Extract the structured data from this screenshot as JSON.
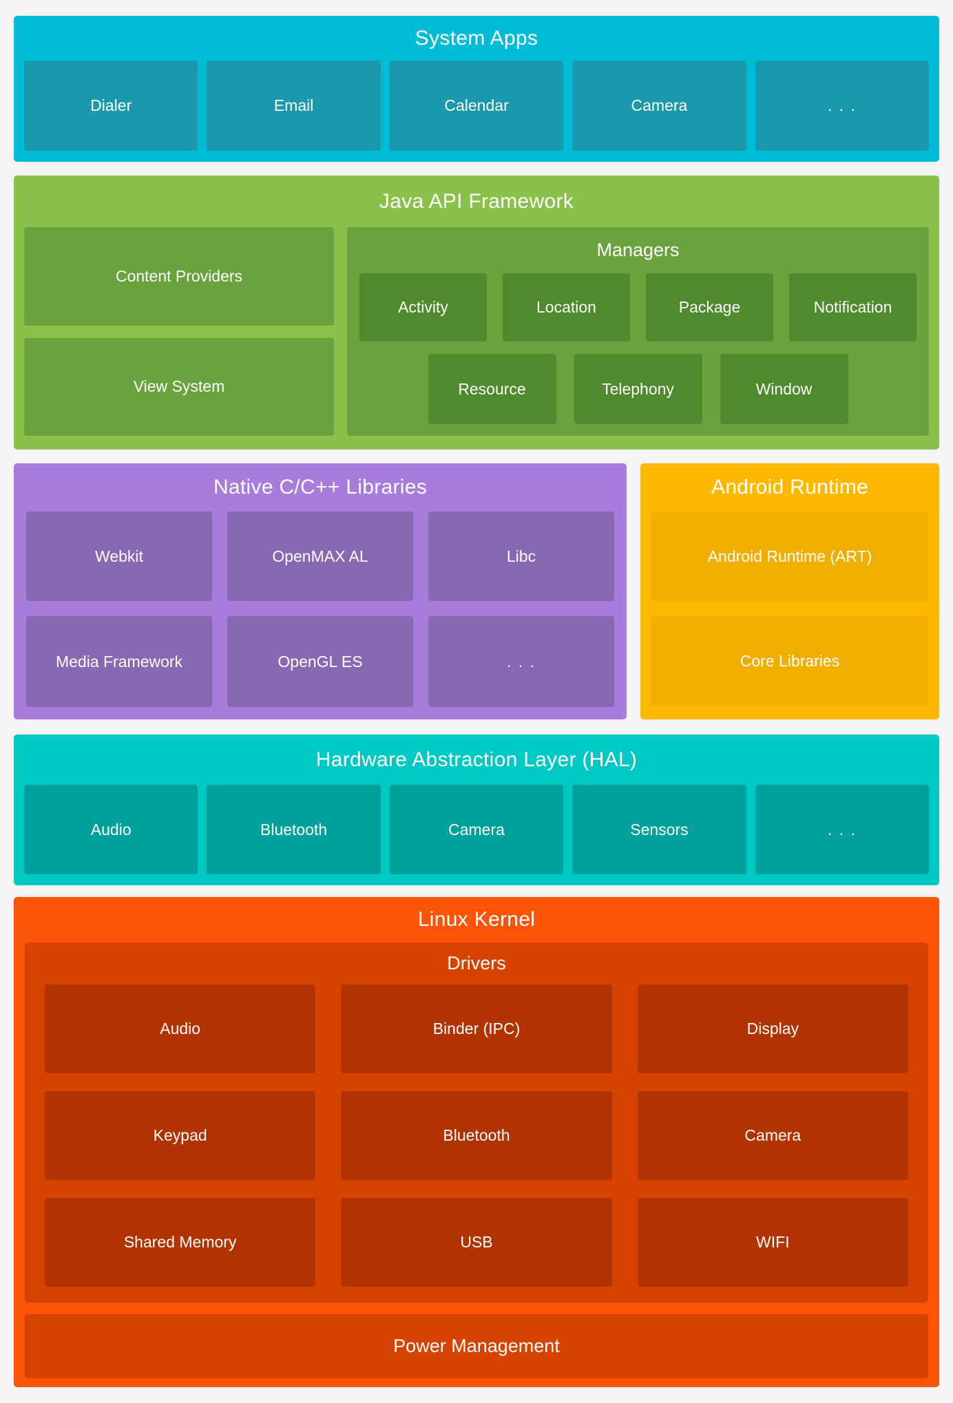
{
  "colors": {
    "page_bg": "#F4F4F5",
    "system_apps_bg": "#00BCD6",
    "system_apps_box": "#1999AB",
    "java_bg": "#89C14B",
    "java_box": "#6AA23D",
    "java_chip": "#4F8A2C",
    "native_bg": "#A77CDB",
    "native_box": "#8868B2",
    "runtime_bg": "#FDB900",
    "runtime_box": "#EFAE00",
    "hal_bg": "#00C9C3",
    "hal_box": "#00A09C",
    "kernel_bg": "#FA5506",
    "kernel_panel": "#D64301",
    "kernel_chip": "#B13301",
    "text": "#FFFFFF"
  },
  "layers": {
    "system_apps": {
      "title": "System Apps",
      "items": [
        "Dialer",
        "Email",
        "Calendar",
        "Camera",
        ". . ."
      ]
    },
    "java_api": {
      "title": "Java API Framework",
      "left_items": [
        "Content Providers",
        "View System"
      ],
      "managers": {
        "title": "Managers",
        "row1": [
          "Activity",
          "Location",
          "Package",
          "Notification"
        ],
        "row2": [
          "Resource",
          "Telephony",
          "Window"
        ]
      }
    },
    "native_libs": {
      "title": "Native C/C++ Libraries",
      "items": [
        "Webkit",
        "OpenMAX AL",
        "Libc",
        "Media Framework",
        "OpenGL ES",
        ". . ."
      ]
    },
    "android_runtime": {
      "title": "Android Runtime",
      "items": [
        "Android Runtime (ART)",
        "Core Libraries"
      ]
    },
    "hal": {
      "title": "Hardware Abstraction Layer (HAL)",
      "items": [
        "Audio",
        "Bluetooth",
        "Camera",
        "Sensors",
        ". . ."
      ]
    },
    "linux_kernel": {
      "title": "Linux Kernel",
      "drivers": {
        "title": "Drivers",
        "items": [
          "Audio",
          "Binder (IPC)",
          "Display",
          "Keypad",
          "Bluetooth",
          "Camera",
          "Shared Memory",
          "USB",
          "WIFI"
        ]
      },
      "power": "Power Management"
    }
  }
}
